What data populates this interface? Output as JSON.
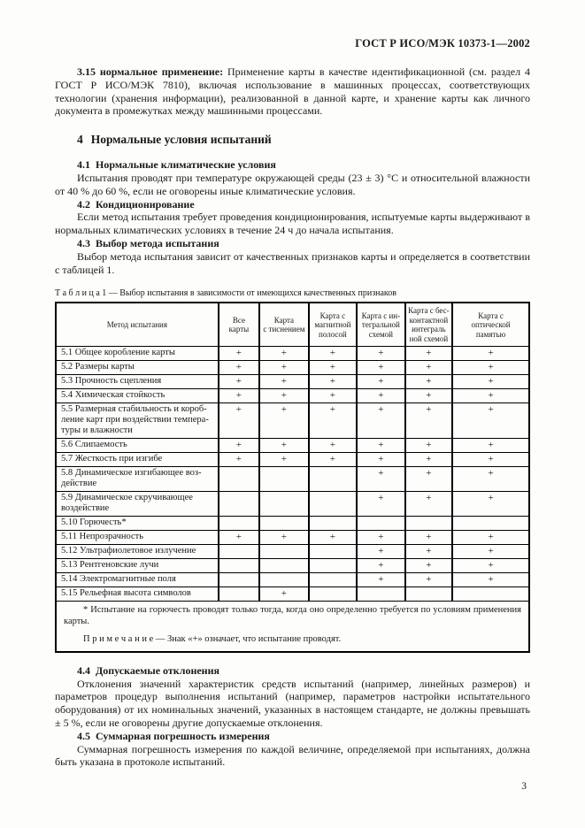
{
  "page": {
    "number": "3"
  },
  "header": {
    "doc_code": "ГОСТ Р ИСО/МЭК 10373-1—2002"
  },
  "clause_3_15": {
    "number": "3.15",
    "term": "нормальное применение:",
    "text": "Применение карты в качестве идентификационной (см. раздел 4 ГОСТ Р ИСО/МЭК 7810), включая использование в машинных процессах, соответствующих технологии (хранения информации), реализованной в данной карте, и хранение карты как личного документа в промежутках между машинными процессами."
  },
  "section4": {
    "number": "4",
    "title": "Нормальные условия испытаний",
    "subsections": [
      {
        "num": "4.1",
        "title": "Нормальные климатические условия",
        "text": "Испытания проводят при температуре окружающей среды (23 ± 3) °С и относительной влажности от 40 % до 60 %, если не оговорены иные климатические условия."
      },
      {
        "num": "4.2",
        "title": "Кондиционирование",
        "text": "Если метод испытания требует проведения кондиционирования, испытуемые карты выдерживают в нормальных климатических условиях в течение 24 ч до начала испытания."
      },
      {
        "num": "4.3",
        "title": "Выбор метода испытания",
        "text": "Выбор метода испытания зависит от качественных признаков карты и определяется в соответствии с таблицей 1."
      },
      {
        "num": "4.4",
        "title": "Допускаемые отклонения",
        "text": "Отклонения значений характеристик средств испытаний (например, линейных размеров) и параметров процедур выполнения испытаний (например, параметров настройки испытательного оборудования) от их номинальных значений, указанных в настоящем стандарте, не должны превышать ± 5 %, если не оговорены другие допускаемые отклонения."
      },
      {
        "num": "4.5",
        "title": "Суммарная погрешность измерения",
        "text": "Суммарная погрешность измерения по каждой величине, определяемой при испытаниях, должна быть указана в протоколе испытаний."
      }
    ]
  },
  "table": {
    "caption_label": "Т а б л и ц а 1 —",
    "caption_text": "Выбор испытания в зависимости от имеющихся качественных признаков",
    "columns": [
      "Метод испытания",
      "Все\nкарты",
      "Карта\nс тиснением",
      "Карта с\nмагнитной\nполосой",
      "Карта с ин-\nтегральной\nсхемой",
      "Карта с бес-\nконтактной\nинтеграль\nной схемой",
      "Карта с\nоптической\nпамятью"
    ],
    "rows": [
      {
        "label": "5.1  Общее коробление карты",
        "values": [
          "+",
          "+",
          "+",
          "+",
          "+",
          "+"
        ]
      },
      {
        "label": "5.2  Размеры карты",
        "values": [
          "+",
          "+",
          "+",
          "+",
          "+",
          "+"
        ]
      },
      {
        "label": "5.3  Прочность сцепления",
        "values": [
          "+",
          "+",
          "+",
          "+",
          "+",
          "+"
        ]
      },
      {
        "label": "5.4  Химическая стойкость",
        "values": [
          "+",
          "+",
          "+",
          "+",
          "+",
          "+"
        ]
      },
      {
        "label": "5.5  Размерная стабильность и короб-\nление карт при воздействии темпера-\nтуры и влажности",
        "values": [
          "+",
          "+",
          "+",
          "+",
          "+",
          "+"
        ]
      },
      {
        "label": "5.6  Слипаемость",
        "values": [
          "+",
          "+",
          "+",
          "+",
          "+",
          "+"
        ]
      },
      {
        "label": "5.7  Жесткость при изгибе",
        "values": [
          "+",
          "+",
          "+",
          "+",
          "+",
          "+"
        ]
      },
      {
        "label": "5.8  Динамическое изгибающее воз-\nдействие",
        "values": [
          "",
          "",
          "",
          "+",
          "+",
          "+"
        ]
      },
      {
        "label": "5.9  Динамическое скручивающее\nвоздействие",
        "values": [
          "",
          "",
          "",
          "+",
          "+",
          "+"
        ]
      },
      {
        "label": "5.10  Горючесть*",
        "values": [
          "",
          "",
          "",
          "",
          "",
          ""
        ]
      },
      {
        "label": "5.11  Непрозрачность",
        "values": [
          "+",
          "+",
          "+",
          "+",
          "+",
          "+"
        ]
      },
      {
        "label": "5.12  Ультрафиолетовое излучение",
        "values": [
          "",
          "",
          "",
          "+",
          "+",
          "+"
        ]
      },
      {
        "label": "5.13  Рентгеновские лучи",
        "values": [
          "",
          "",
          "",
          "+",
          "+",
          "+"
        ]
      },
      {
        "label": "5.14  Электромагнитные поля",
        "values": [
          "",
          "",
          "",
          "+",
          "+",
          "+"
        ]
      },
      {
        "label": "5.15  Рельефная высота символов",
        "values": [
          "",
          "+",
          "",
          "",
          "",
          ""
        ]
      }
    ],
    "footnote": "* Испытание на горючесть проводят только тогда, когда оно определенно требуется по условиям применения карты.",
    "note_label": "П р и м е ч а н и е —",
    "note_text": "Знак «+» означает, что испытание проводят."
  }
}
